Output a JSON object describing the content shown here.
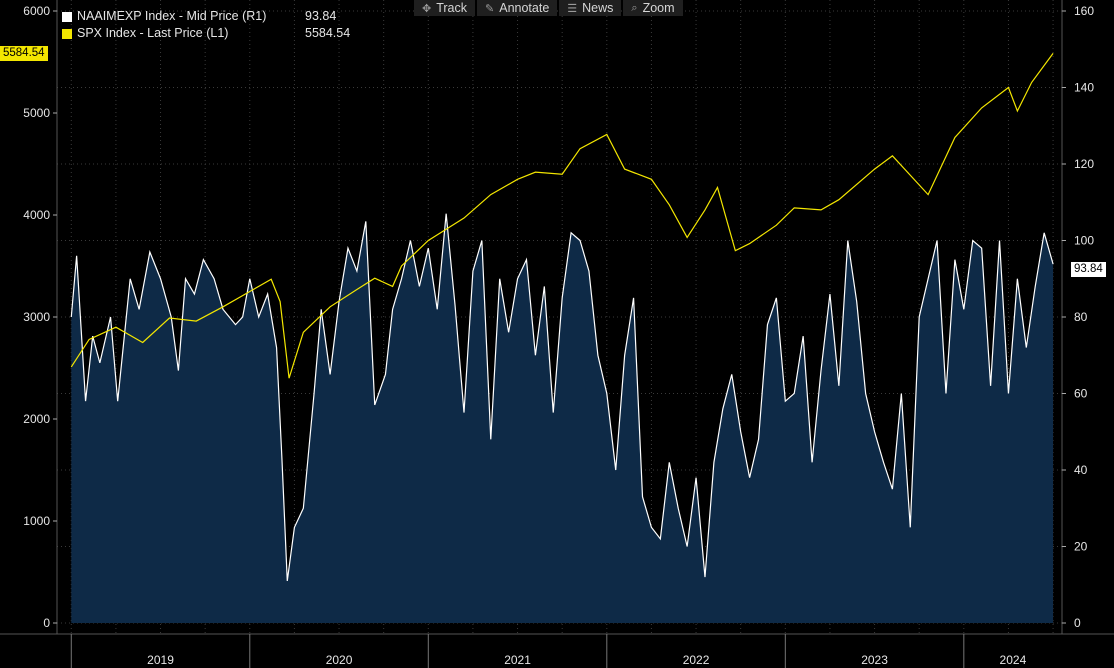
{
  "toolbar": {
    "items": [
      {
        "label": "Track",
        "icon": "crosshair-icon"
      },
      {
        "label": "Annotate",
        "icon": "pencil-icon"
      },
      {
        "label": "News",
        "icon": "news-icon"
      },
      {
        "label": "Zoom",
        "icon": "zoom-icon"
      }
    ]
  },
  "legend": {
    "naaim": {
      "name": "NAAIMEXP Index - Mid Price (R1)",
      "value": "93.84",
      "color": "#ffffff"
    },
    "spx": {
      "name": "SPX Index - Last Price (L1)",
      "value": "5584.54",
      "color": "#f3e600"
    }
  },
  "badges": {
    "spx_last": "5584.54",
    "naaim_last": "93.84"
  },
  "chart_data": {
    "type": "line",
    "x_range": [
      2018.92,
      2024.55
    ],
    "left_axis": {
      "ticks": [
        "0",
        "1000",
        "2000",
        "3000",
        "4000",
        "5000",
        "6000"
      ],
      "range": [
        0,
        6000
      ]
    },
    "right_axis": {
      "ticks": [
        "0",
        "20",
        "40",
        "60",
        "80",
        "100",
        "120",
        "140",
        "160"
      ],
      "range": [
        0,
        160
      ]
    },
    "x_ticks": [
      "2019",
      "2020",
      "2021",
      "2022",
      "2023",
      "2024"
    ],
    "grid": true,
    "series": [
      {
        "name": "SPX Index - Last Price (L1)",
        "axis": "left",
        "color": "#f3e600",
        "points": [
          [
            2019.0,
            2510
          ],
          [
            2019.1,
            2780
          ],
          [
            2019.25,
            2900
          ],
          [
            2019.4,
            2750
          ],
          [
            2019.55,
            2990
          ],
          [
            2019.7,
            2960
          ],
          [
            2019.85,
            3100
          ],
          [
            2020.0,
            3250
          ],
          [
            2020.12,
            3370
          ],
          [
            2020.17,
            3150
          ],
          [
            2020.22,
            2400
          ],
          [
            2020.3,
            2850
          ],
          [
            2020.45,
            3100
          ],
          [
            2020.6,
            3270
          ],
          [
            2020.7,
            3380
          ],
          [
            2020.8,
            3300
          ],
          [
            2020.85,
            3500
          ],
          [
            2021.0,
            3750
          ],
          [
            2021.2,
            3970
          ],
          [
            2021.35,
            4200
          ],
          [
            2021.5,
            4350
          ],
          [
            2021.6,
            4420
          ],
          [
            2021.75,
            4400
          ],
          [
            2021.85,
            4650
          ],
          [
            2022.0,
            4790
          ],
          [
            2022.1,
            4450
          ],
          [
            2022.25,
            4350
          ],
          [
            2022.35,
            4100
          ],
          [
            2022.45,
            3780
          ],
          [
            2022.55,
            4050
          ],
          [
            2022.62,
            4270
          ],
          [
            2022.72,
            3650
          ],
          [
            2022.8,
            3720
          ],
          [
            2022.95,
            3900
          ],
          [
            2023.05,
            4070
          ],
          [
            2023.2,
            4050
          ],
          [
            2023.3,
            4150
          ],
          [
            2023.5,
            4450
          ],
          [
            2023.6,
            4580
          ],
          [
            2023.8,
            4200
          ],
          [
            2023.95,
            4760
          ],
          [
            2024.1,
            5050
          ],
          [
            2024.25,
            5250
          ],
          [
            2024.3,
            5020
          ],
          [
            2024.38,
            5300
          ],
          [
            2024.5,
            5584.54
          ]
        ]
      },
      {
        "name": "NAAIMEXP Index - Mid Price (R1)",
        "axis": "right",
        "color": "#ffffff",
        "fill": "#0e2a47",
        "points": [
          [
            2019.0,
            80
          ],
          [
            2019.03,
            96
          ],
          [
            2019.08,
            58
          ],
          [
            2019.12,
            75
          ],
          [
            2019.16,
            68
          ],
          [
            2019.22,
            80
          ],
          [
            2019.26,
            58
          ],
          [
            2019.33,
            90
          ],
          [
            2019.38,
            82
          ],
          [
            2019.44,
            97
          ],
          [
            2019.5,
            90
          ],
          [
            2019.56,
            80
          ],
          [
            2019.6,
            66
          ],
          [
            2019.64,
            90
          ],
          [
            2019.69,
            86
          ],
          [
            2019.74,
            95
          ],
          [
            2019.8,
            90
          ],
          [
            2019.85,
            82
          ],
          [
            2019.92,
            78
          ],
          [
            2019.96,
            80
          ],
          [
            2020.0,
            90
          ],
          [
            2020.05,
            80
          ],
          [
            2020.1,
            86
          ],
          [
            2020.15,
            72
          ],
          [
            2020.18,
            43
          ],
          [
            2020.21,
            11
          ],
          [
            2020.25,
            25
          ],
          [
            2020.3,
            30
          ],
          [
            2020.36,
            60
          ],
          [
            2020.4,
            82
          ],
          [
            2020.45,
            65
          ],
          [
            2020.5,
            84
          ],
          [
            2020.55,
            98
          ],
          [
            2020.6,
            92
          ],
          [
            2020.65,
            105
          ],
          [
            2020.7,
            57
          ],
          [
            2020.76,
            65
          ],
          [
            2020.8,
            82
          ],
          [
            2020.85,
            90
          ],
          [
            2020.9,
            100
          ],
          [
            2020.95,
            88
          ],
          [
            2021.0,
            98
          ],
          [
            2021.05,
            82
          ],
          [
            2021.1,
            107
          ],
          [
            2021.15,
            83
          ],
          [
            2021.2,
            55
          ],
          [
            2021.25,
            92
          ],
          [
            2021.3,
            100
          ],
          [
            2021.35,
            48
          ],
          [
            2021.4,
            90
          ],
          [
            2021.45,
            76
          ],
          [
            2021.5,
            90
          ],
          [
            2021.55,
            95
          ],
          [
            2021.6,
            70
          ],
          [
            2021.65,
            88
          ],
          [
            2021.7,
            55
          ],
          [
            2021.75,
            85
          ],
          [
            2021.8,
            102
          ],
          [
            2021.85,
            100
          ],
          [
            2021.9,
            92
          ],
          [
            2021.95,
            70
          ],
          [
            2022.0,
            60
          ],
          [
            2022.05,
            40
          ],
          [
            2022.1,
            70
          ],
          [
            2022.15,
            85
          ],
          [
            2022.2,
            33
          ],
          [
            2022.25,
            25
          ],
          [
            2022.3,
            22
          ],
          [
            2022.35,
            42
          ],
          [
            2022.4,
            30
          ],
          [
            2022.45,
            20
          ],
          [
            2022.5,
            38
          ],
          [
            2022.55,
            12
          ],
          [
            2022.6,
            42
          ],
          [
            2022.65,
            56
          ],
          [
            2022.7,
            65
          ],
          [
            2022.75,
            50
          ],
          [
            2022.8,
            38
          ],
          [
            2022.85,
            48
          ],
          [
            2022.9,
            78
          ],
          [
            2022.95,
            85
          ],
          [
            2023.0,
            58
          ],
          [
            2023.05,
            60
          ],
          [
            2023.1,
            75
          ],
          [
            2023.15,
            42
          ],
          [
            2023.2,
            66
          ],
          [
            2023.25,
            86
          ],
          [
            2023.3,
            62
          ],
          [
            2023.35,
            100
          ],
          [
            2023.4,
            84
          ],
          [
            2023.45,
            60
          ],
          [
            2023.5,
            50
          ],
          [
            2023.55,
            42
          ],
          [
            2023.6,
            35
          ],
          [
            2023.65,
            60
          ],
          [
            2023.7,
            25
          ],
          [
            2023.75,
            80
          ],
          [
            2023.8,
            90
          ],
          [
            2023.85,
            100
          ],
          [
            2023.9,
            60
          ],
          [
            2023.95,
            95
          ],
          [
            2024.0,
            82
          ],
          [
            2024.05,
            100
          ],
          [
            2024.1,
            98
          ],
          [
            2024.15,
            62
          ],
          [
            2024.2,
            100
          ],
          [
            2024.25,
            60
          ],
          [
            2024.3,
            90
          ],
          [
            2024.35,
            72
          ],
          [
            2024.4,
            88
          ],
          [
            2024.45,
            102
          ],
          [
            2024.5,
            93.84
          ]
        ]
      }
    ]
  }
}
